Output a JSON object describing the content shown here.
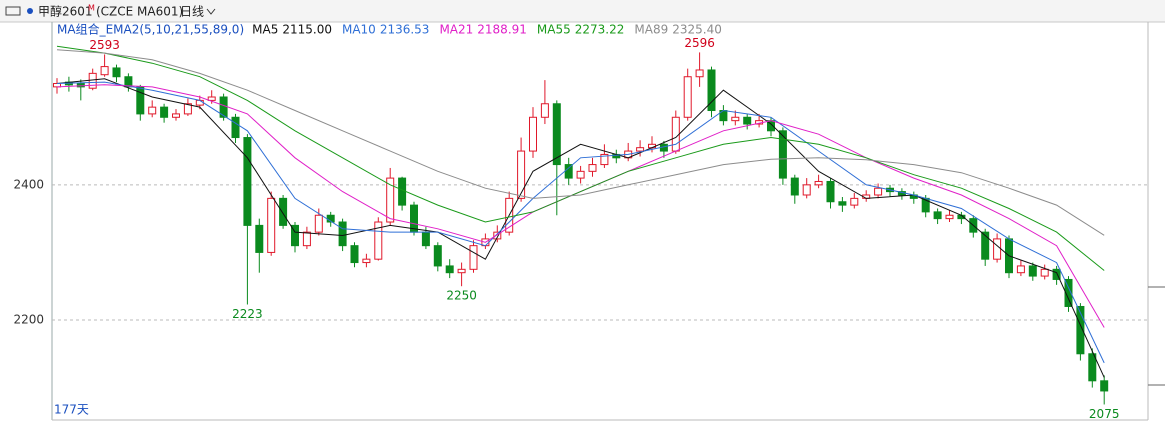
{
  "header": {
    "symbol": "甲醇2601",
    "badge": "M",
    "code": "(CZCE MA601)",
    "period": "日线"
  },
  "chart_data": {
    "type": "candlestick",
    "indicator_label": "MA组合_EMA2(5,10,21,55,89,0)",
    "days_label": "177天",
    "up_color": "#e0182a",
    "down_color": "#0a8a1e",
    "ylim": [
      2052,
      2641
    ],
    "yticks": [
      2200,
      2400
    ],
    "grid": true,
    "candles": [
      [
        2545,
        2558,
        2535,
        2550
      ],
      [
        2552,
        2560,
        2538,
        2548
      ],
      [
        2550,
        2556,
        2525,
        2545
      ],
      [
        2543,
        2572,
        2540,
        2565
      ],
      [
        2563,
        2593,
        2560,
        2575
      ],
      [
        2573,
        2578,
        2552,
        2560
      ],
      [
        2560,
        2565,
        2538,
        2545
      ],
      [
        2545,
        2548,
        2495,
        2505
      ],
      [
        2505,
        2525,
        2500,
        2515
      ],
      [
        2515,
        2520,
        2492,
        2500
      ],
      [
        2500,
        2512,
        2495,
        2505
      ],
      [
        2505,
        2528,
        2502,
        2520
      ],
      [
        2518,
        2532,
        2512,
        2525
      ],
      [
        2525,
        2540,
        2520,
        2530
      ],
      [
        2530,
        2535,
        2495,
        2500
      ],
      [
        2500,
        2505,
        2462,
        2470
      ],
      [
        2470,
        2475,
        2223,
        2340
      ],
      [
        2340,
        2350,
        2270,
        2300
      ],
      [
        2300,
        2390,
        2295,
        2380
      ],
      [
        2380,
        2385,
        2335,
        2340
      ],
      [
        2340,
        2345,
        2300,
        2310
      ],
      [
        2310,
        2338,
        2305,
        2330
      ],
      [
        2330,
        2365,
        2325,
        2355
      ],
      [
        2355,
        2360,
        2338,
        2345
      ],
      [
        2345,
        2350,
        2302,
        2310
      ],
      [
        2310,
        2315,
        2278,
        2285
      ],
      [
        2285,
        2298,
        2278,
        2290
      ],
      [
        2290,
        2352,
        2288,
        2345
      ],
      [
        2345,
        2425,
        2340,
        2410
      ],
      [
        2410,
        2412,
        2362,
        2370
      ],
      [
        2370,
        2375,
        2325,
        2330
      ],
      [
        2330,
        2338,
        2305,
        2310
      ],
      [
        2310,
        2315,
        2272,
        2280
      ],
      [
        2280,
        2290,
        2262,
        2270
      ],
      [
        2270,
        2285,
        2250,
        2275
      ],
      [
        2275,
        2318,
        2270,
        2310
      ],
      [
        2310,
        2328,
        2305,
        2320
      ],
      [
        2320,
        2340,
        2315,
        2330
      ],
      [
        2330,
        2390,
        2325,
        2380
      ],
      [
        2380,
        2470,
        2375,
        2450
      ],
      [
        2450,
        2515,
        2440,
        2500
      ],
      [
        2500,
        2555,
        2490,
        2520
      ],
      [
        2520,
        2525,
        2355,
        2430
      ],
      [
        2430,
        2440,
        2400,
        2410
      ],
      [
        2410,
        2428,
        2402,
        2420
      ],
      [
        2420,
        2440,
        2412,
        2430
      ],
      [
        2430,
        2460,
        2425,
        2445
      ],
      [
        2445,
        2452,
        2432,
        2440
      ],
      [
        2440,
        2462,
        2435,
        2450
      ],
      [
        2450,
        2466,
        2442,
        2455
      ],
      [
        2455,
        2472,
        2448,
        2460
      ],
      [
        2460,
        2465,
        2440,
        2450
      ],
      [
        2450,
        2510,
        2446,
        2500
      ],
      [
        2500,
        2572,
        2495,
        2560
      ],
      [
        2560,
        2596,
        2545,
        2570
      ],
      [
        2570,
        2575,
        2500,
        2510
      ],
      [
        2510,
        2518,
        2488,
        2495
      ],
      [
        2495,
        2510,
        2488,
        2500
      ],
      [
        2500,
        2505,
        2482,
        2490
      ],
      [
        2490,
        2505,
        2485,
        2495
      ],
      [
        2495,
        2500,
        2472,
        2480
      ],
      [
        2480,
        2485,
        2400,
        2410
      ],
      [
        2410,
        2415,
        2372,
        2385
      ],
      [
        2385,
        2410,
        2380,
        2400
      ],
      [
        2400,
        2415,
        2395,
        2405
      ],
      [
        2405,
        2410,
        2365,
        2375
      ],
      [
        2375,
        2382,
        2360,
        2370
      ],
      [
        2370,
        2388,
        2365,
        2380
      ],
      [
        2380,
        2392,
        2375,
        2385
      ],
      [
        2385,
        2402,
        2380,
        2395
      ],
      [
        2395,
        2400,
        2382,
        2390
      ],
      [
        2390,
        2395,
        2378,
        2385
      ],
      [
        2385,
        2390,
        2372,
        2380
      ],
      [
        2380,
        2385,
        2352,
        2360
      ],
      [
        2360,
        2365,
        2342,
        2350
      ],
      [
        2350,
        2362,
        2345,
        2355
      ],
      [
        2355,
        2360,
        2342,
        2350
      ],
      [
        2350,
        2355,
        2322,
        2330
      ],
      [
        2330,
        2335,
        2280,
        2290
      ],
      [
        2290,
        2328,
        2285,
        2320
      ],
      [
        2320,
        2325,
        2262,
        2270
      ],
      [
        2270,
        2288,
        2265,
        2280
      ],
      [
        2280,
        2285,
        2258,
        2265
      ],
      [
        2265,
        2282,
        2260,
        2275
      ],
      [
        2275,
        2280,
        2252,
        2260
      ],
      [
        2260,
        2265,
        2212,
        2220
      ],
      [
        2220,
        2225,
        2140,
        2150
      ],
      [
        2150,
        2158,
        2100,
        2110
      ],
      [
        2110,
        2118,
        2075,
        2095
      ]
    ],
    "ma_x": [
      0,
      4,
      8,
      12,
      16,
      20,
      24,
      28,
      32,
      36,
      40,
      44,
      48,
      52,
      56,
      60,
      64,
      68,
      72,
      76,
      80,
      84,
      88
    ],
    "series": [
      {
        "name": "MA5",
        "color": "#111111",
        "current": {
          "value": 2115,
          "label": "2115.00"
        },
        "values": [
          2550,
          2557,
          2530,
          2515,
          2440,
          2330,
          2325,
          2340,
          2330,
          2290,
          2420,
          2460,
          2440,
          2470,
          2540,
          2490,
          2420,
          2380,
          2385,
          2355,
          2295,
          2270,
          2115
        ]
      },
      {
        "name": "MA10",
        "color": "#2f6fd6",
        "current": {
          "value": 2136.53,
          "label": "2136.53"
        },
        "values": [
          2550,
          2552,
          2540,
          2525,
          2480,
          2380,
          2335,
          2330,
          2330,
          2310,
          2380,
          2440,
          2445,
          2460,
          2510,
          2500,
          2450,
          2400,
          2385,
          2365,
          2320,
          2285,
          2136.53
        ]
      },
      {
        "name": "MA21",
        "color": "#e020c8",
        "current": {
          "value": 2188.91,
          "label": "2188.91"
        },
        "values": [
          2545,
          2548,
          2545,
          2530,
          2505,
          2440,
          2390,
          2350,
          2335,
          2315,
          2360,
          2390,
          2420,
          2450,
          2480,
          2495,
          2475,
          2440,
          2410,
          2385,
          2350,
          2310,
          2188.91
        ]
      },
      {
        "name": "MA55",
        "color": "#1a9a1a",
        "current": {
          "value": 2273.22,
          "label": "2273.22"
        },
        "values": [
          2605,
          2595,
          2580,
          2560,
          2525,
          2480,
          2440,
          2400,
          2370,
          2345,
          2360,
          2390,
          2420,
          2440,
          2460,
          2470,
          2460,
          2440,
          2415,
          2395,
          2365,
          2330,
          2273.22
        ]
      },
      {
        "name": "MA89",
        "color": "#8c8c8c",
        "current": {
          "value": 2325.4,
          "label": "2325.40"
        },
        "values": [
          2600,
          2595,
          2585,
          2565,
          2540,
          2510,
          2480,
          2450,
          2420,
          2395,
          2380,
          2385,
          2400,
          2415,
          2430,
          2438,
          2440,
          2437,
          2430,
          2418,
          2395,
          2370,
          2325.4
        ]
      }
    ],
    "annotations": [
      {
        "x": 4,
        "value": 2593,
        "color": "#d0021b",
        "position": "above"
      },
      {
        "x": 16,
        "value": 2223,
        "color": "#0a8a1e",
        "position": "below"
      },
      {
        "x": 34,
        "value": 2250,
        "color": "#0a8a1e",
        "position": "below"
      },
      {
        "x": 54,
        "value": 2596,
        "color": "#d0021b",
        "position": "above"
      },
      {
        "x": 88,
        "value": 2075,
        "color": "#0a8a1e",
        "position": "below"
      }
    ]
  }
}
